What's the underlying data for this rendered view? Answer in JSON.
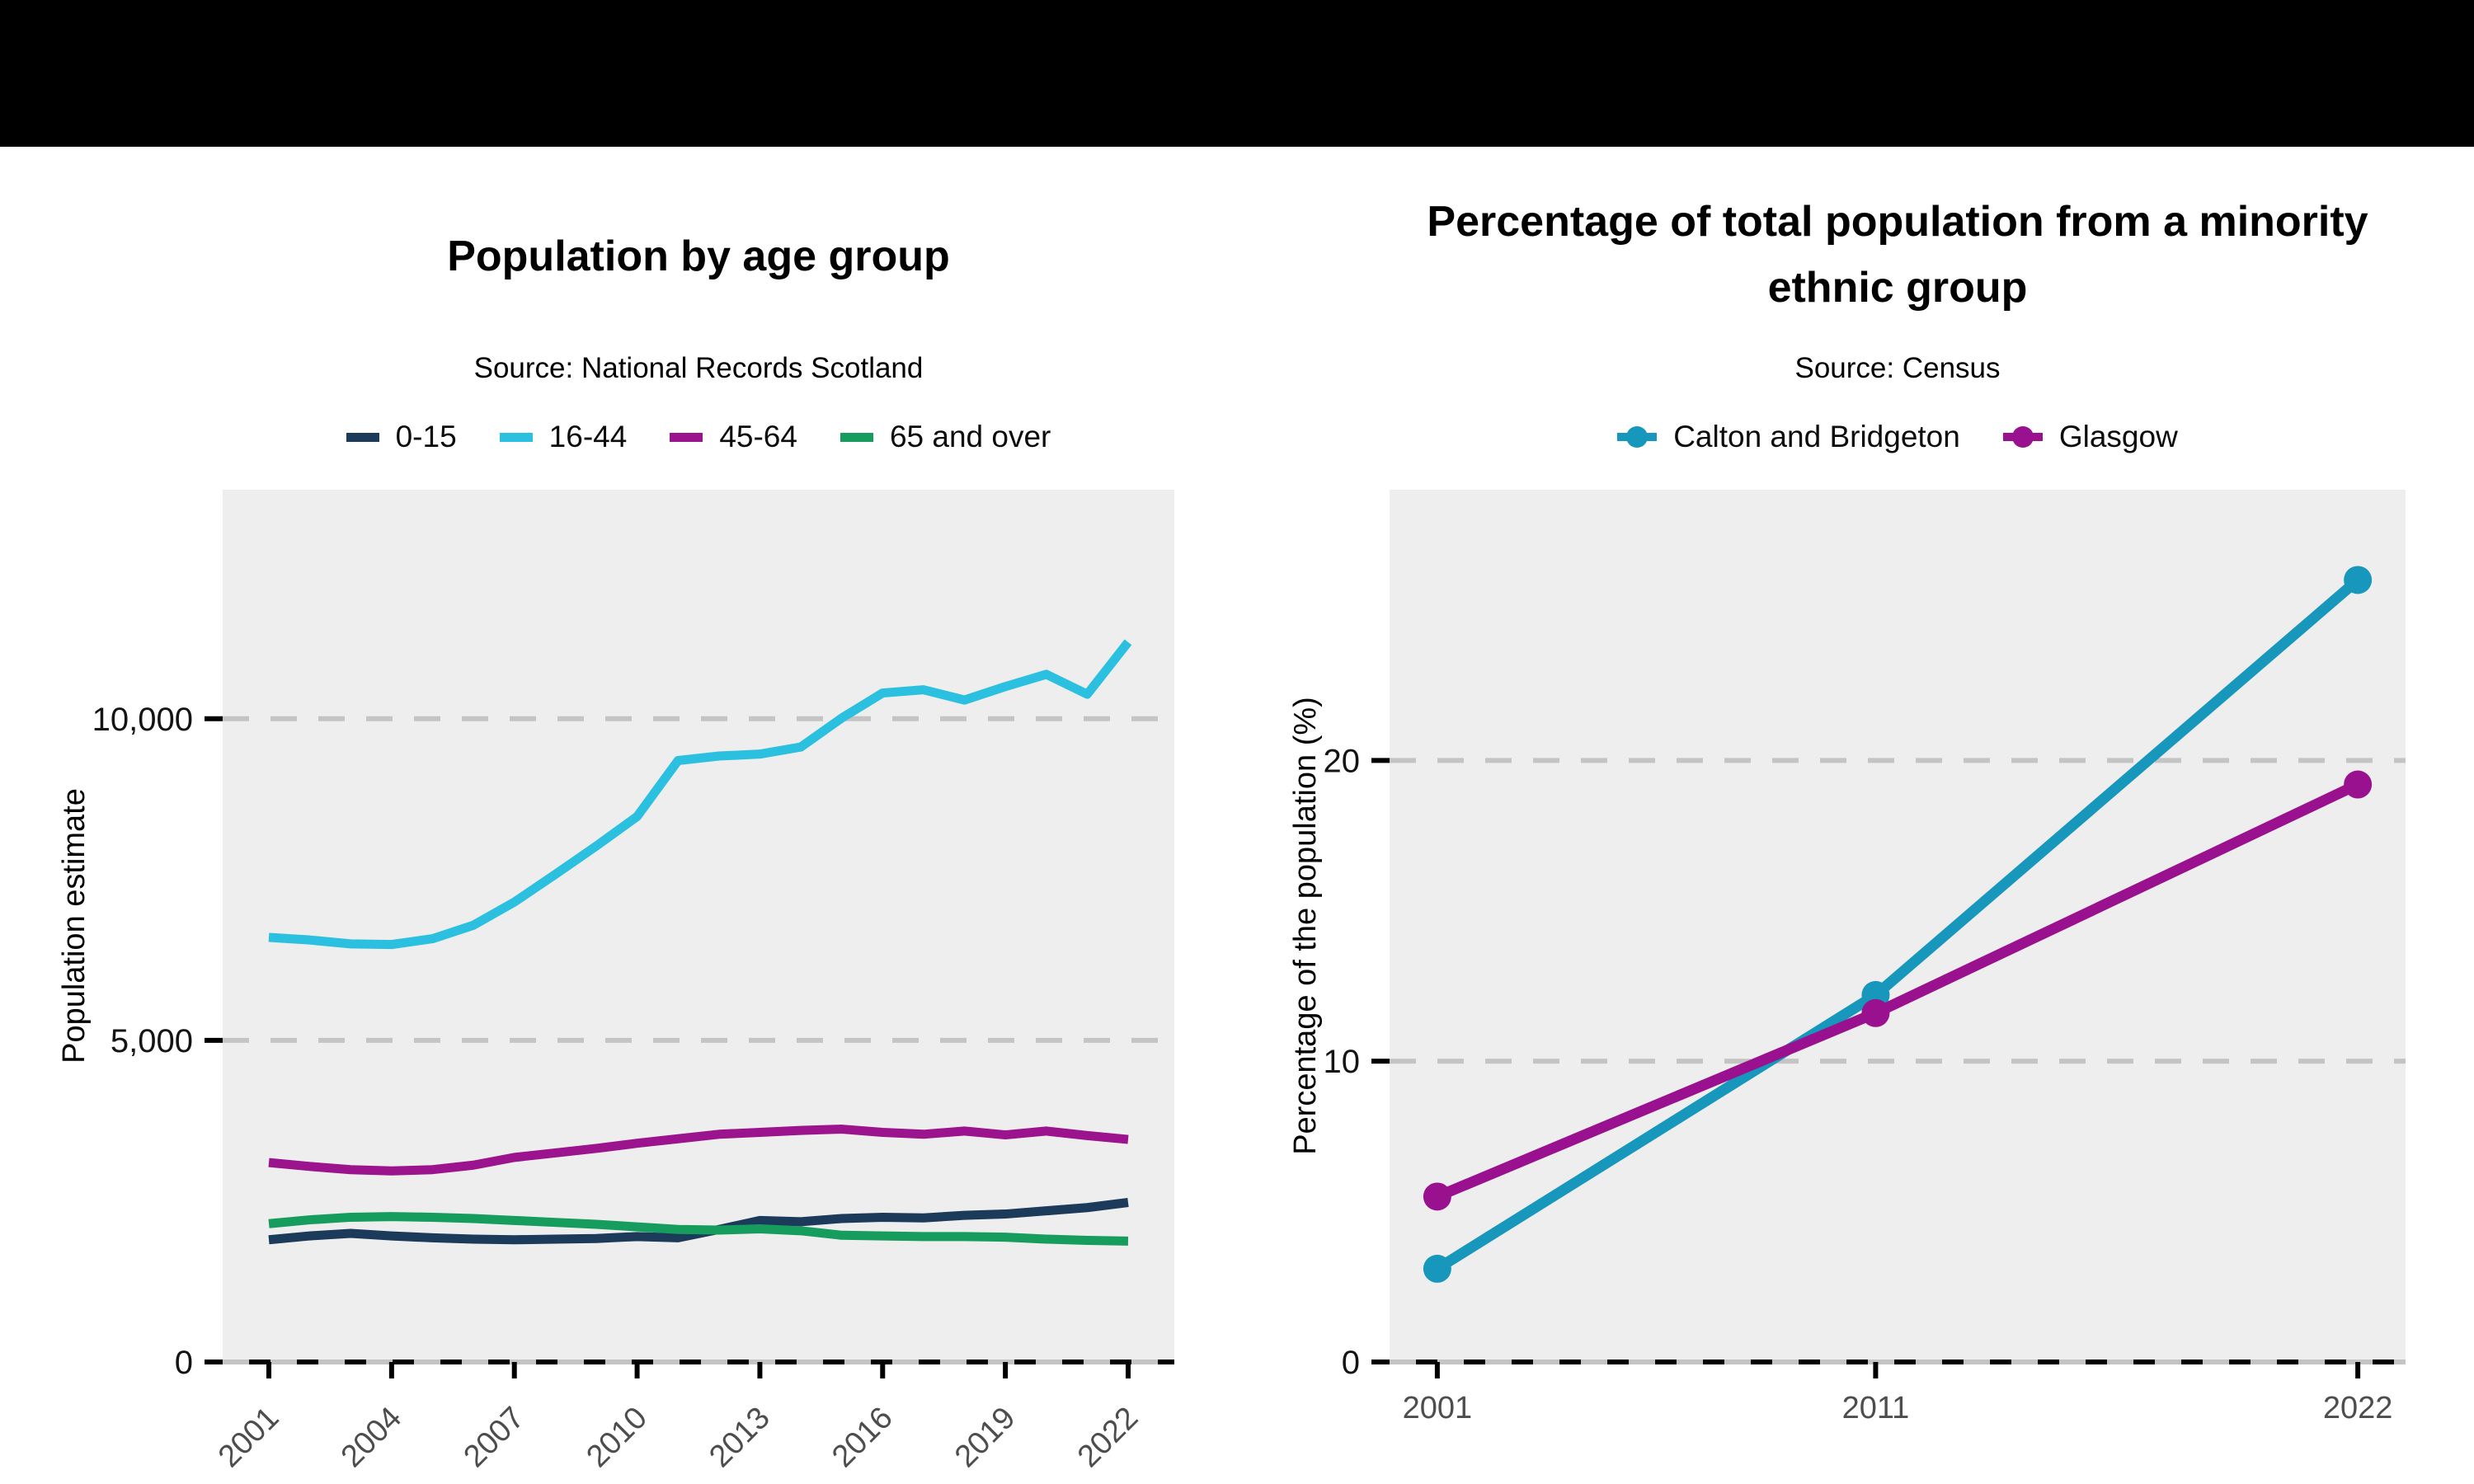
{
  "top_bar": {
    "color": "#000000"
  },
  "styles": {
    "panel_background": "#eeeeee",
    "gridline_color": "#c4c4c4",
    "axis_color": "#000000",
    "x_tick_text_color": "#4d4d4d",
    "y_tick_text_color": "#141414"
  },
  "charts": [
    {
      "name": "population-by-age-group",
      "title": "Population by age group",
      "subtitle": "Source: National Records Scotland",
      "y_axis_title": "Population estimate",
      "legend": [
        {
          "label": "0-15",
          "color": "#1c3a59",
          "marker": "line"
        },
        {
          "label": "16-44",
          "color": "#2bc0df",
          "marker": "line"
        },
        {
          "label": "45-64",
          "color": "#9b148d",
          "marker": "line"
        },
        {
          "label": "65 and over",
          "color": "#169c5d",
          "marker": "line"
        }
      ],
      "chart_data": {
        "type": "line",
        "x": [
          2001,
          2002,
          2003,
          2004,
          2005,
          2006,
          2007,
          2008,
          2009,
          2010,
          2011,
          2012,
          2013,
          2014,
          2015,
          2016,
          2017,
          2018,
          2019,
          2020,
          2021,
          2022
        ],
        "series": [
          {
            "name": "0-15",
            "color": "#1c3a59",
            "values": [
              1900,
              1960,
              2000,
              1960,
              1930,
              1910,
              1900,
              1910,
              1920,
              1950,
              1930,
              2060,
              2200,
              2180,
              2230,
              2250,
              2240,
              2280,
              2300,
              2350,
              2400,
              2480
            ]
          },
          {
            "name": "16-44",
            "color": "#2bc0df",
            "values": [
              6600,
              6560,
              6500,
              6490,
              6580,
              6790,
              7150,
              7580,
              8020,
              8480,
              9350,
              9420,
              9450,
              9560,
              10010,
              10400,
              10450,
              10290,
              10500,
              10690,
              10380,
              11190
            ]
          },
          {
            "name": "45-64",
            "color": "#9b148d",
            "values": [
              3100,
              3040,
              2990,
              2970,
              2990,
              3060,
              3180,
              3250,
              3320,
              3400,
              3470,
              3540,
              3570,
              3600,
              3620,
              3570,
              3540,
              3590,
              3530,
              3590,
              3520,
              3460
            ]
          },
          {
            "name": "65 and over",
            "color": "#169c5d",
            "values": [
              2150,
              2210,
              2250,
              2260,
              2250,
              2230,
              2200,
              2170,
              2140,
              2100,
              2060,
              2050,
              2070,
              2040,
              1970,
              1960,
              1950,
              1950,
              1940,
              1910,
              1890,
              1880
            ]
          }
        ],
        "xticks": {
          "values": [
            2001,
            2004,
            2007,
            2010,
            2013,
            2016,
            2019,
            2022
          ],
          "labels": [
            "2001",
            "2004",
            "2007",
            "2010",
            "2013",
            "2016",
            "2019",
            "2022"
          ],
          "angle": 45
        },
        "yticks": {
          "values": [
            0,
            5000,
            10000
          ],
          "labels": [
            "0",
            "5,000",
            "10,000"
          ]
        },
        "xlim": [
          1999.871,
          2023.129
        ],
        "ylim": [
          0,
          13560
        ],
        "grid": "horizontal dashed",
        "legend_position": "top",
        "markers": false
      }
    },
    {
      "name": "minority-ethnic-percentage",
      "title": "Percentage of total population from a minority ethnic group",
      "subtitle": "Source: Census",
      "y_axis_title": "Percentage of the population (%)",
      "legend": [
        {
          "label": "Calton and Bridgeton",
          "color": "#1697bb",
          "marker": "point"
        },
        {
          "label": "Glasgow",
          "color": "#9a1190",
          "marker": "point"
        }
      ],
      "chart_data": {
        "type": "line",
        "x": [
          2001,
          2011,
          2022
        ],
        "series": [
          {
            "name": "Calton and Bridgeton",
            "color": "#1697bb",
            "values": [
              3.1,
              12.2,
              26.0
            ]
          },
          {
            "name": "Glasgow",
            "color": "#9a1190",
            "values": [
              5.5,
              11.6,
              19.2
            ]
          }
        ],
        "xticks": {
          "values": [
            2001,
            2011,
            2022
          ],
          "labels": [
            "2001",
            "2011",
            "2022"
          ],
          "angle": 0
        },
        "yticks": {
          "values": [
            0,
            10,
            20
          ],
          "labels": [
            "0",
            "10",
            "20"
          ]
        },
        "xlim": [
          1999.911,
          2023.089
        ],
        "ylim": [
          0,
          29
        ],
        "grid": "horizontal dashed",
        "legend_position": "top",
        "markers": true
      }
    }
  ]
}
